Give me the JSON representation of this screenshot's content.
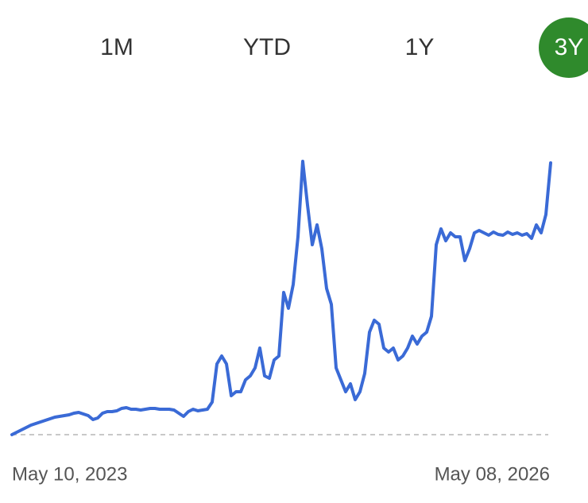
{
  "tabs": [
    {
      "label": "1M"
    },
    {
      "label": "YTD"
    },
    {
      "label": "1Y"
    },
    {
      "label": "3Y",
      "active": true,
      "color": "#2f8a2c"
    }
  ],
  "chart_data": {
    "type": "line",
    "color": "#3a6ad6",
    "categories": [
      "May 10, 2023",
      null,
      null,
      null,
      null,
      null,
      null,
      null,
      null,
      null,
      null,
      null,
      null,
      null,
      null,
      null,
      null,
      null,
      null,
      null,
      null,
      null,
      null,
      null,
      null,
      null,
      null,
      null,
      null,
      null,
      null,
      null,
      null,
      null,
      null,
      null,
      null,
      null,
      null,
      null,
      null,
      null,
      null,
      null,
      null,
      null,
      null,
      null,
      null,
      null,
      null,
      null,
      null,
      null,
      null,
      null,
      null,
      null,
      null,
      null,
      null,
      null,
      null,
      null,
      null,
      null,
      null,
      null,
      null,
      null,
      null,
      null,
      null,
      null,
      null,
      null,
      null,
      null,
      null,
      null,
      null,
      null,
      null,
      null,
      null,
      null,
      null,
      null,
      null,
      null,
      null,
      null,
      null,
      null,
      null,
      null,
      null,
      null,
      null,
      null,
      null,
      null,
      null,
      null,
      null,
      null,
      null,
      null,
      null,
      null,
      null,
      null,
      null,
      "May 08, 2026"
    ],
    "values": [
      1,
      4,
      7,
      10,
      13,
      15,
      17,
      19,
      21,
      23,
      24,
      25,
      26,
      28,
      29,
      27,
      25,
      20,
      22,
      28,
      30,
      30,
      31,
      34,
      35,
      33,
      33,
      32,
      33,
      34,
      34,
      33,
      33,
      33,
      32,
      28,
      24,
      30,
      33,
      31,
      32,
      33,
      42,
      90,
      100,
      90,
      50,
      55,
      55,
      70,
      75,
      85,
      110,
      75,
      72,
      95,
      100,
      180,
      160,
      190,
      250,
      345,
      290,
      240,
      265,
      235,
      185,
      165,
      85,
      70,
      55,
      65,
      45,
      55,
      78,
      130,
      145,
      140,
      110,
      105,
      110,
      95,
      100,
      110,
      125,
      115,
      125,
      130,
      150,
      240,
      260,
      245,
      255,
      250,
      250,
      220,
      235,
      255,
      258,
      255,
      252,
      256,
      253,
      252,
      256,
      253,
      255,
      252,
      254,
      248,
      265,
      255,
      278,
      343
    ],
    "ylim": [
      0,
      350
    ]
  }
}
